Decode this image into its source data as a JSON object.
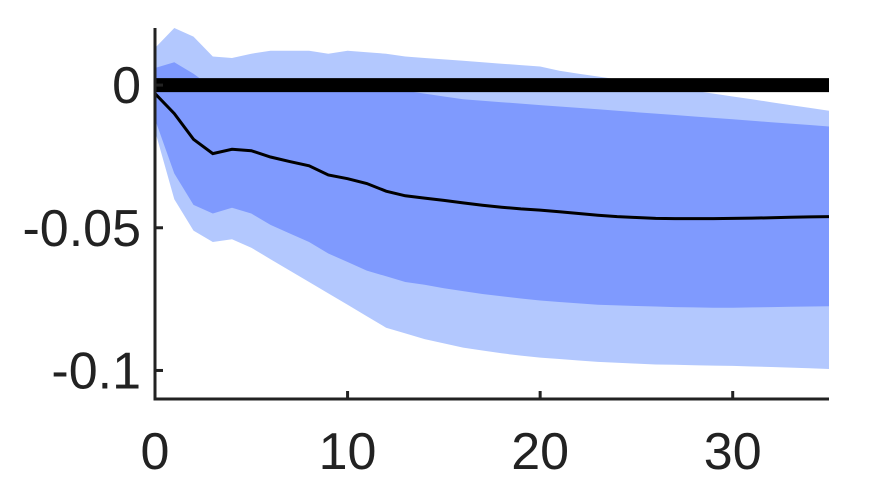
{
  "chart_data": {
    "type": "area",
    "title": "",
    "xlabel": "",
    "ylabel": "",
    "xlim": [
      0,
      35
    ],
    "ylim": [
      -0.11,
      0.02
    ],
    "x_ticks": [
      0,
      10,
      20,
      30
    ],
    "x_tick_labels": [
      "0",
      "10",
      "20",
      "30"
    ],
    "y_ticks": [
      0,
      -0.05,
      -0.1
    ],
    "y_tick_labels": [
      "0",
      "-0.05",
      "-0.1"
    ],
    "grid": false,
    "legend": "none",
    "zero_line": 0,
    "x": [
      0,
      1,
      2,
      3,
      4,
      5,
      6,
      7,
      8,
      9,
      10,
      11,
      12,
      13,
      14,
      15,
      16,
      17,
      18,
      19,
      20,
      21,
      22,
      23,
      24,
      25,
      26,
      27,
      28,
      29,
      30,
      31,
      32,
      33,
      34,
      35
    ],
    "series": [
      {
        "role": "median",
        "color": "#000000",
        "values": [
          -0.003,
          -0.01,
          -0.019,
          -0.024,
          -0.0225,
          -0.023,
          -0.0252,
          -0.0268,
          -0.0283,
          -0.0315,
          -0.0328,
          -0.0345,
          -0.0372,
          -0.0388,
          -0.0396,
          -0.0404,
          -0.0413,
          -0.0421,
          -0.0428,
          -0.0434,
          -0.0438,
          -0.0444,
          -0.045,
          -0.0456,
          -0.0461,
          -0.0464,
          -0.0467,
          -0.0468,
          -0.0468,
          -0.0468,
          -0.0467,
          -0.0466,
          -0.0465,
          -0.0463,
          -0.0462,
          -0.0461
        ]
      },
      {
        "role": "inner_band",
        "color": "#7f9afe",
        "upper": [
          0.006,
          0.008,
          0.004,
          -0.001,
          -0.0005,
          0.0005,
          0.001,
          0.001,
          0.001,
          0.0005,
          0.0005,
          0.0,
          -0.001,
          -0.002,
          -0.003,
          -0.004,
          -0.005,
          -0.0055,
          -0.006,
          -0.0065,
          -0.007,
          -0.0075,
          -0.008,
          -0.0085,
          -0.009,
          -0.0095,
          -0.01,
          -0.0105,
          -0.011,
          -0.0115,
          -0.012,
          -0.0125,
          -0.013,
          -0.0135,
          -0.014,
          -0.0145
        ],
        "lower": [
          -0.012,
          -0.031,
          -0.042,
          -0.045,
          -0.043,
          -0.045,
          -0.049,
          -0.052,
          -0.055,
          -0.059,
          -0.062,
          -0.065,
          -0.067,
          -0.069,
          -0.07,
          -0.0712,
          -0.0722,
          -0.0732,
          -0.074,
          -0.0748,
          -0.0755,
          -0.076,
          -0.0765,
          -0.077,
          -0.0772,
          -0.0774,
          -0.0776,
          -0.0778,
          -0.0779,
          -0.078,
          -0.078,
          -0.0779,
          -0.0778,
          -0.0777,
          -0.0776,
          -0.0775
        ]
      },
      {
        "role": "outer_band",
        "color": "#b3c8fe",
        "upper": [
          0.013,
          0.02,
          0.017,
          0.01,
          0.0095,
          0.011,
          0.012,
          0.012,
          0.012,
          0.011,
          0.012,
          0.0115,
          0.011,
          0.01,
          0.0095,
          0.009,
          0.0085,
          0.008,
          0.0075,
          0.007,
          0.0065,
          0.005,
          0.004,
          0.003,
          0.002,
          0.001,
          0.0,
          -0.001,
          -0.002,
          -0.003,
          -0.004,
          -0.005,
          -0.006,
          -0.007,
          -0.008,
          -0.009
        ],
        "lower": [
          -0.016,
          -0.04,
          -0.051,
          -0.055,
          -0.054,
          -0.057,
          -0.061,
          -0.065,
          -0.069,
          -0.073,
          -0.077,
          -0.081,
          -0.085,
          -0.087,
          -0.089,
          -0.0905,
          -0.092,
          -0.093,
          -0.094,
          -0.0948,
          -0.0955,
          -0.096,
          -0.0965,
          -0.097,
          -0.0973,
          -0.0976,
          -0.0979,
          -0.098,
          -0.0982,
          -0.0983,
          -0.0984,
          -0.0986,
          -0.0988,
          -0.099,
          -0.0992,
          -0.0995
        ]
      }
    ]
  }
}
